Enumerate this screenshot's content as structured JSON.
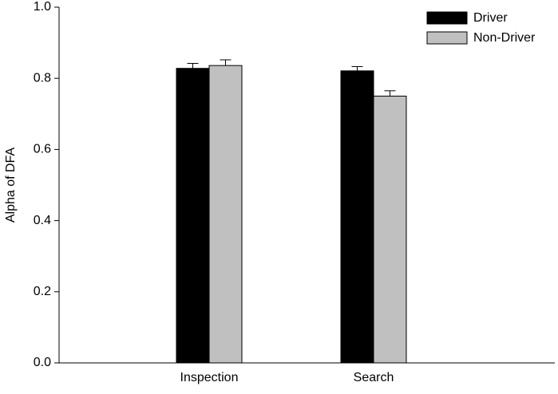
{
  "chart_data": {
    "type": "bar",
    "y_label": "Alpha of DFA",
    "categories": [
      "Inspection",
      "Search"
    ],
    "series": [
      {
        "name": "Driver",
        "color": "#000000",
        "values": [
          0.828,
          0.821
        ],
        "errors": [
          0.014,
          0.012
        ]
      },
      {
        "name": "Non-Driver",
        "color": "#c0c0c0",
        "values": [
          0.836,
          0.75
        ],
        "errors": [
          0.016,
          0.015
        ]
      }
    ],
    "ylim": [
      0,
      1
    ],
    "yticks": [
      {
        "value": 0,
        "label": "0.0"
      },
      0.2,
      0.4,
      0.6,
      0.8,
      {
        "value": 1,
        "label": "1.0"
      }
    ],
    "legend": "top-right"
  }
}
